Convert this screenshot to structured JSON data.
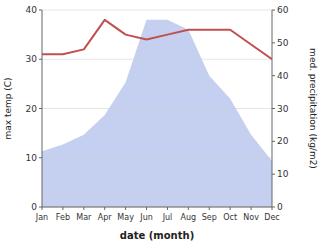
{
  "chart_data": {
    "type": "line",
    "xlabel": "date (month)",
    "ylabel": "max temp (C)",
    "y2label": "med. precipitation (kg/m2)",
    "categories": [
      "Jan",
      "Feb",
      "Mar",
      "Apr",
      "May",
      "Jun",
      "Jul",
      "Aug",
      "Sep",
      "Oct",
      "Nov",
      "Dec"
    ],
    "series": [
      {
        "type": "area",
        "axis": "y2",
        "color": "#c5d0f0",
        "values": [
          17,
          19,
          22,
          28,
          38,
          57,
          57,
          54,
          40,
          33,
          22,
          14
        ]
      },
      {
        "type": "line",
        "color": "#c0504d",
        "values": [
          31,
          31,
          32,
          38,
          35,
          34,
          35,
          36,
          36,
          36,
          33,
          30
        ]
      }
    ],
    "ylim": [
      0,
      40
    ],
    "yticks": [
      0,
      10,
      20,
      30,
      40
    ],
    "y2lim": [
      0,
      60
    ],
    "y2ticks": [
      0,
      10,
      20,
      30,
      40,
      50,
      60
    ],
    "grid": true
  }
}
